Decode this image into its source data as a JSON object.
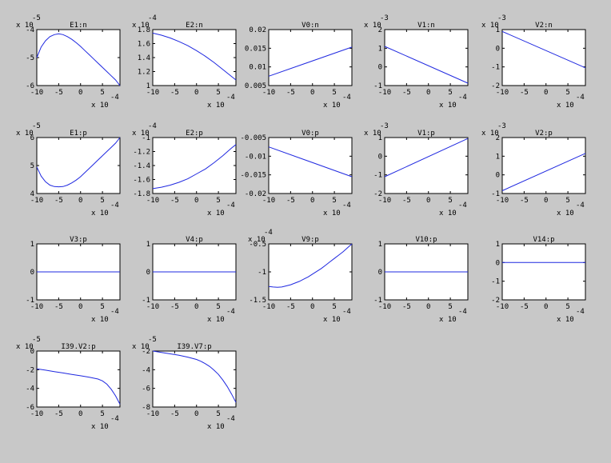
{
  "figure": {
    "background": "#c8c8c8",
    "line_color": "#1f28e0"
  },
  "chart_data": [
    {
      "type": "line",
      "title": "E1:n",
      "xlim": [
        -10,
        9
      ],
      "ylim": [
        -6,
        -4
      ],
      "yticks": [
        "-4",
        "-5",
        "-6"
      ],
      "yexp": "x 10",
      "yexp_power": "-5",
      "xticks": [
        "-10",
        "-5",
        "0",
        "5"
      ],
      "xexp": "x 10",
      "xexp_power": "-4",
      "series": [
        {
          "x": [
            -10,
            -9,
            -8,
            -7,
            -6,
            -5,
            -4,
            -3,
            -2,
            -1,
            0,
            1,
            2,
            3,
            4,
            5,
            6,
            7,
            8,
            9
          ],
          "y": [
            -5.0,
            -4.62,
            -4.4,
            -4.25,
            -4.18,
            -4.15,
            -4.18,
            -4.25,
            -4.35,
            -4.47,
            -4.6,
            -4.75,
            -4.9,
            -5.05,
            -5.2,
            -5.35,
            -5.5,
            -5.65,
            -5.8,
            -6.0
          ]
        }
      ]
    },
    {
      "type": "line",
      "title": "E2:n",
      "xlim": [
        -10,
        9
      ],
      "ylim": [
        1.0,
        1.8
      ],
      "yticks": [
        "1.8",
        "1.6",
        "1.4",
        "1.2",
        "1"
      ],
      "yexp": "x 10",
      "yexp_power": "-4",
      "xticks": [
        "-10",
        "-5",
        "0",
        "5"
      ],
      "xexp": "x 10",
      "xexp_power": "-4",
      "series": [
        {
          "x": [
            -10,
            -8,
            -6,
            -4,
            -2,
            0,
            2,
            4,
            6,
            8,
            9
          ],
          "y": [
            1.75,
            1.72,
            1.68,
            1.63,
            1.57,
            1.5,
            1.42,
            1.33,
            1.23,
            1.13,
            1.08
          ]
        }
      ]
    },
    {
      "type": "line",
      "title": "V0:n",
      "xlim": [
        -10,
        9
      ],
      "ylim": [
        0.005,
        0.02
      ],
      "yticks": [
        "0.02",
        "0.015",
        "0.01",
        "0.005"
      ],
      "yexp": "",
      "yexp_power": "",
      "xticks": [
        "-10",
        "-5",
        "0",
        "5"
      ],
      "xexp": "x 10",
      "xexp_power": "-4",
      "series": [
        {
          "x": [
            -10,
            9
          ],
          "y": [
            0.0075,
            0.0153
          ]
        }
      ]
    },
    {
      "type": "line",
      "title": "V1:n",
      "xlim": [
        -10,
        9
      ],
      "ylim": [
        -1,
        2
      ],
      "yticks": [
        "2",
        "1",
        "0",
        "-1"
      ],
      "yexp": "x 10",
      "yexp_power": "-3",
      "xticks": [
        "-10",
        "-5",
        "0",
        "5"
      ],
      "xexp": "x 10",
      "xexp_power": "-4",
      "series": [
        {
          "x": [
            -10,
            9
          ],
          "y": [
            1.1,
            -0.87
          ]
        }
      ]
    },
    {
      "type": "line",
      "title": "V2:n",
      "xlim": [
        -10,
        9
      ],
      "ylim": [
        -2,
        1
      ],
      "yticks": [
        "1",
        "0",
        "-1",
        "-2"
      ],
      "yexp": "x 10",
      "yexp_power": "-3",
      "xticks": [
        "-10",
        "-5",
        "0",
        "5"
      ],
      "xexp": "x 10",
      "xexp_power": "-4",
      "series": [
        {
          "x": [
            -10,
            9
          ],
          "y": [
            0.9,
            -1.05
          ]
        }
      ]
    },
    {
      "type": "line",
      "title": "E1:p",
      "xlim": [
        -10,
        9
      ],
      "ylim": [
        4,
        6
      ],
      "yticks": [
        "6",
        "5",
        "4"
      ],
      "yexp": "x 10",
      "yexp_power": "-5",
      "xticks": [
        "-10",
        "-5",
        "0",
        "5"
      ],
      "xexp": "x 10",
      "xexp_power": "-4",
      "series": [
        {
          "x": [
            -10,
            -9,
            -8,
            -7,
            -6,
            -5,
            -4,
            -3,
            -2,
            -1,
            0,
            1,
            2,
            3,
            4,
            5,
            6,
            7,
            8,
            9
          ],
          "y": [
            4.95,
            4.62,
            4.42,
            4.3,
            4.25,
            4.24,
            4.25,
            4.3,
            4.38,
            4.48,
            4.6,
            4.75,
            4.9,
            5.05,
            5.2,
            5.35,
            5.5,
            5.65,
            5.8,
            6.0
          ]
        }
      ]
    },
    {
      "type": "line",
      "title": "E2:p",
      "xlim": [
        -10,
        9
      ],
      "ylim": [
        -1.8,
        -1.0
      ],
      "yticks": [
        "-1",
        "-1.2",
        "-1.4",
        "-1.6",
        "-1.8"
      ],
      "yexp": "x 10",
      "yexp_power": "-4",
      "xticks": [
        "-10",
        "-5",
        "0",
        "5"
      ],
      "xexp": "x 10",
      "xexp_power": "-4",
      "series": [
        {
          "x": [
            -10,
            -8,
            -6,
            -4,
            -2,
            0,
            2,
            4,
            6,
            8,
            9
          ],
          "y": [
            -1.73,
            -1.71,
            -1.68,
            -1.64,
            -1.59,
            -1.52,
            -1.45,
            -1.36,
            -1.26,
            -1.15,
            -1.1
          ]
        }
      ]
    },
    {
      "type": "line",
      "title": "V0:p",
      "xlim": [
        -10,
        9
      ],
      "ylim": [
        -0.02,
        -0.005
      ],
      "yticks": [
        "-0.005",
        "-0.01",
        "-0.015",
        "-0.02"
      ],
      "yexp": "",
      "yexp_power": "",
      "xticks": [
        "-10",
        "-5",
        "0",
        "5"
      ],
      "xexp": "x 10",
      "xexp_power": "-4",
      "series": [
        {
          "x": [
            -10,
            9
          ],
          "y": [
            -0.0075,
            -0.0155
          ]
        }
      ]
    },
    {
      "type": "line",
      "title": "V1:p",
      "xlim": [
        -10,
        9
      ],
      "ylim": [
        -2,
        1
      ],
      "yticks": [
        "1",
        "0",
        "-1",
        "-2"
      ],
      "yexp": "x 10",
      "yexp_power": "-3",
      "xticks": [
        "-10",
        "-5",
        "0",
        "5"
      ],
      "xexp": "x 10",
      "xexp_power": "-4",
      "series": [
        {
          "x": [
            -10,
            9
          ],
          "y": [
            -1.1,
            0.95
          ]
        }
      ]
    },
    {
      "type": "line",
      "title": "V2:p",
      "xlim": [
        -10,
        9
      ],
      "ylim": [
        -1,
        2
      ],
      "yticks": [
        "2",
        "1",
        "0",
        "-1"
      ],
      "yexp": "x 10",
      "yexp_power": "-3",
      "xticks": [
        "-10",
        "-5",
        "0",
        "5"
      ],
      "xexp": "x 10",
      "xexp_power": "-4",
      "series": [
        {
          "x": [
            -10,
            9
          ],
          "y": [
            -0.85,
            1.15
          ]
        }
      ]
    },
    {
      "type": "line",
      "title": "V3:p",
      "xlim": [
        -10,
        9
      ],
      "ylim": [
        -1,
        1
      ],
      "yticks": [
        "1",
        "0",
        "-1"
      ],
      "yexp": "",
      "yexp_power": "",
      "xticks": [
        "-10",
        "-5",
        "0",
        "5"
      ],
      "xexp": "x 10",
      "xexp_power": "-4",
      "series": [
        {
          "x": [
            -10,
            9
          ],
          "y": [
            0,
            0
          ]
        }
      ]
    },
    {
      "type": "line",
      "title": "V4:p",
      "xlim": [
        -10,
        9
      ],
      "ylim": [
        -1,
        1
      ],
      "yticks": [
        "1",
        "0",
        "-1"
      ],
      "yexp": "",
      "yexp_power": "",
      "xticks": [
        "-10",
        "-5",
        "0",
        "5"
      ],
      "xexp": "x 10",
      "xexp_power": "-4",
      "series": [
        {
          "x": [
            -10,
            9
          ],
          "y": [
            0,
            0
          ]
        }
      ]
    },
    {
      "type": "line",
      "title": "V9:p",
      "xlim": [
        -10,
        9
      ],
      "ylim": [
        -1.5,
        -0.5
      ],
      "yticks": [
        "-0.5",
        "-1",
        "-1.5"
      ],
      "yexp": "x 10",
      "yexp_power": "-4",
      "xticks": [
        "-10",
        "-5",
        "0",
        "5"
      ],
      "xexp": "x 10",
      "xexp_power": "-4",
      "series": [
        {
          "x": [
            -10,
            -9,
            -8,
            -7,
            -6,
            -5,
            -4,
            -3,
            -2,
            -1,
            0,
            1,
            2,
            3,
            4,
            5,
            6,
            7,
            8,
            9
          ],
          "y": [
            -1.26,
            -1.27,
            -1.275,
            -1.27,
            -1.25,
            -1.23,
            -1.2,
            -1.17,
            -1.13,
            -1.09,
            -1.04,
            -0.99,
            -0.94,
            -0.88,
            -0.82,
            -0.76,
            -0.7,
            -0.64,
            -0.57,
            -0.5
          ]
        }
      ]
    },
    {
      "type": "line",
      "title": "V10:p",
      "xlim": [
        -10,
        9
      ],
      "ylim": [
        -1,
        1
      ],
      "yticks": [
        "1",
        "0",
        "-1"
      ],
      "yexp": "",
      "yexp_power": "",
      "xticks": [
        "-10",
        "-5",
        "0",
        "5"
      ],
      "xexp": "x 10",
      "xexp_power": "-4",
      "series": [
        {
          "x": [
            -10,
            9
          ],
          "y": [
            0,
            0
          ]
        }
      ]
    },
    {
      "type": "line",
      "title": "V14:p",
      "xlim": [
        -10,
        9
      ],
      "ylim": [
        -2,
        1
      ],
      "yticks": [
        "1",
        "0",
        "-1",
        "-2"
      ],
      "yexp": "",
      "yexp_power": "",
      "xticks": [
        "-10",
        "-5",
        "0",
        "5"
      ],
      "xexp": "x 10",
      "xexp_power": "-4",
      "series": [
        {
          "x": [
            -10,
            9
          ],
          "y": [
            0,
            0
          ]
        }
      ]
    },
    {
      "type": "line",
      "title": "I39.V2:p",
      "xlim": [
        -10,
        9
      ],
      "ylim": [
        -6,
        0
      ],
      "yticks": [
        "0",
        "-2",
        "-4",
        "-6"
      ],
      "yexp": "x 10",
      "yexp_power": "-5",
      "xticks": [
        "-10",
        "-5",
        "0",
        "5"
      ],
      "xexp": "x 10",
      "xexp_power": "-4",
      "series": [
        {
          "x": [
            -10,
            -8,
            -6,
            -4,
            -2,
            0,
            2,
            4,
            5,
            6,
            7,
            8,
            9
          ],
          "y": [
            -1.9,
            -2.05,
            -2.2,
            -2.35,
            -2.5,
            -2.65,
            -2.8,
            -3.0,
            -3.2,
            -3.55,
            -4.1,
            -4.8,
            -5.7
          ]
        }
      ]
    },
    {
      "type": "line",
      "title": "I39.V7:p",
      "xlim": [
        -10,
        9
      ],
      "ylim": [
        -8,
        -2
      ],
      "yticks": [
        "-2",
        "-4",
        "-6",
        "-8"
      ],
      "yexp": "x 10",
      "yexp_power": "-5",
      "xticks": [
        "-10",
        "-5",
        "0",
        "5"
      ],
      "xexp": "x 10",
      "xexp_power": "-4",
      "series": [
        {
          "x": [
            -10,
            -8,
            -6,
            -4,
            -2,
            0,
            1,
            2,
            3,
            4,
            5,
            6,
            7,
            8,
            9
          ],
          "y": [
            -2.0,
            -2.15,
            -2.3,
            -2.45,
            -2.65,
            -2.9,
            -3.1,
            -3.35,
            -3.65,
            -4.05,
            -4.5,
            -5.1,
            -5.8,
            -6.6,
            -7.5
          ]
        }
      ]
    }
  ]
}
